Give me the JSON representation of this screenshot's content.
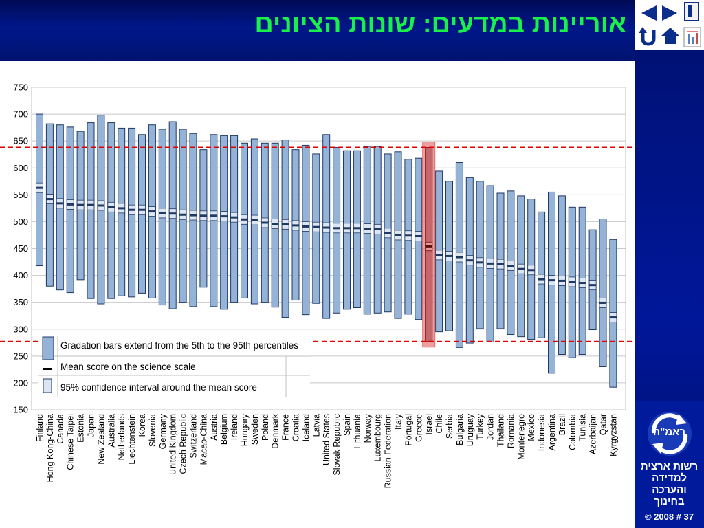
{
  "title": "אוריינות במדעים: שונות הציונים",
  "nav": {
    "back_icon": "triangle-left-icon",
    "forward_icon": "triangle-right-icon",
    "return_icon": "return-arrow-icon",
    "home_icon": "home-icon",
    "doc_icon": "document-icon",
    "chart_icon": "chart-icon"
  },
  "logo": {
    "label": "ראמ\"ה",
    "org_lines": [
      "רשות ארצית",
      "למדידה",
      "והערכה",
      "בחינוך"
    ],
    "slide_number": "© 2008 # 37"
  },
  "colors": {
    "bar_fill": "#95b3d7",
    "bar_stroke": "#1f3864",
    "ci_fill": "#dce6f2",
    "mean": "#1f3864",
    "highlight": "#e36c6c",
    "reference_line": "#e00000"
  },
  "chart_data": {
    "type": "range-bar",
    "ylim": [
      150,
      750
    ],
    "yticks": [
      150,
      200,
      250,
      300,
      350,
      400,
      450,
      500,
      550,
      600,
      650,
      700,
      750
    ],
    "reference_lines": [
      638,
      277
    ],
    "highlight_category": "Israel",
    "legend": [
      {
        "kind": "bar",
        "text": "Gradation bars extend from the 5th to the 95th percentiles"
      },
      {
        "kind": "mean",
        "text": "Mean score on the science scale"
      },
      {
        "kind": "ci",
        "text": "95% confidence interval around the mean score"
      }
    ],
    "categories": [
      "Finland",
      "Hong Kong-China",
      "Canada",
      "Chinese Taipei",
      "Estonia",
      "Japan",
      "New Zealand",
      "Australia",
      "Netherlands",
      "Liechtenstein",
      "Korea",
      "Slovenia",
      "Germany",
      "United Kingdom",
      "Czech Republic",
      "Switzerland",
      "Macao-China",
      "Austria",
      "Belgium",
      "Ireland",
      "Hungary",
      "Sweden",
      "Poland",
      "Denmark",
      "France",
      "Croatia",
      "Iceland",
      "Latvia",
      "United States",
      "Slovak Republic",
      "Spain",
      "Lithuania",
      "Norway",
      "Luxembourg",
      "Russian Federation",
      "Italy",
      "Portugal",
      "Greece",
      "Israel",
      "Chile",
      "Serbia",
      "Bulgaria",
      "Uruguay",
      "Turkey",
      "Jordan",
      "Thailand",
      "Romania",
      "Montenegro",
      "Mexico",
      "Indonesia",
      "Argentina",
      "Brazil",
      "Colombia",
      "Tunisia",
      "Azerbaijan",
      "Qatar",
      "Kyrgyzstan"
    ],
    "p5": [
      418,
      380,
      373,
      368,
      392,
      357,
      347,
      357,
      362,
      360,
      367,
      358,
      345,
      338,
      350,
      342,
      378,
      342,
      337,
      350,
      358,
      347,
      350,
      341,
      322,
      354,
      327,
      348,
      320,
      330,
      337,
      340,
      328,
      330,
      332,
      320,
      328,
      318,
      277,
      295,
      297,
      266,
      274,
      301,
      276,
      301,
      290,
      286,
      281,
      284,
      218,
      253,
      247,
      253,
      299,
      230,
      192
    ],
    "p95": [
      700,
      682,
      680,
      676,
      668,
      684,
      698,
      684,
      674,
      674,
      662,
      680,
      672,
      686,
      672,
      664,
      634,
      662,
      660,
      660,
      646,
      654,
      646,
      646,
      652,
      634,
      642,
      626,
      662,
      638,
      632,
      632,
      640,
      640,
      626,
      630,
      616,
      618,
      638,
      594,
      575,
      610,
      582,
      575,
      567,
      553,
      557,
      548,
      542,
      518,
      555,
      548,
      527,
      527,
      485,
      505,
      467
    ],
    "mean": [
      563,
      542,
      534,
      532,
      531,
      531,
      530,
      527,
      525,
      522,
      522,
      519,
      516,
      515,
      513,
      512,
      511,
      511,
      510,
      508,
      504,
      503,
      498,
      496,
      495,
      493,
      491,
      490,
      489,
      488,
      488,
      488,
      487,
      486,
      479,
      475,
      474,
      473,
      454,
      438,
      436,
      434,
      428,
      424,
      422,
      421,
      418,
      412,
      410,
      393,
      391,
      390,
      388,
      386,
      382,
      349,
      322
    ]
  }
}
